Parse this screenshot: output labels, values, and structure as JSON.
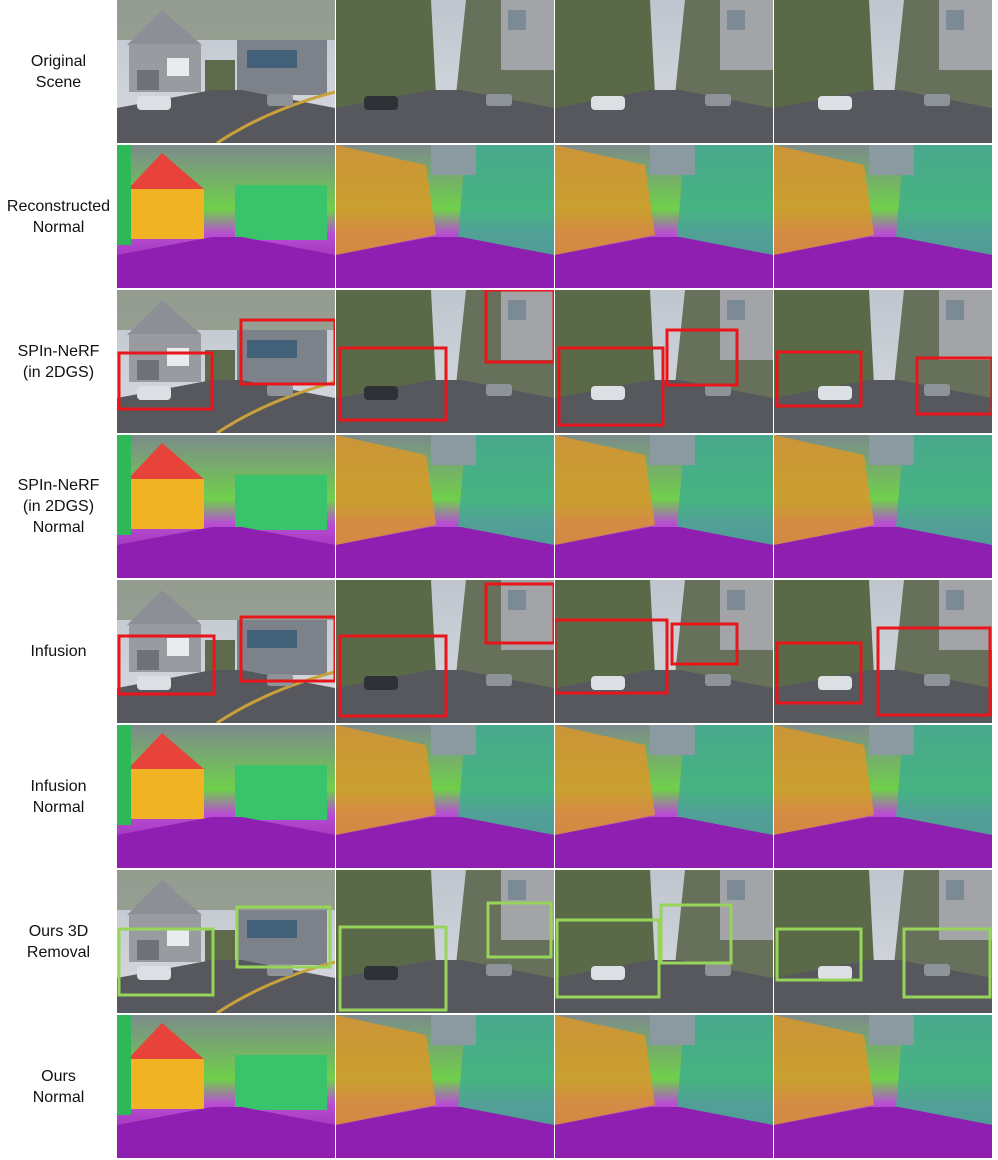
{
  "figure": {
    "rows": [
      {
        "label": "Original\nScene",
        "kind": "scene",
        "boxes": "none"
      },
      {
        "label": "Reconstructed\nNormal",
        "kind": "normal",
        "boxes": "none"
      },
      {
        "label": "SPIn-NeRF\n(in 2DGS)",
        "kind": "scene",
        "boxes": "red"
      },
      {
        "label": "SPIn-NeRF\n(in 2DGS)\nNormal",
        "kind": "normal",
        "boxes": "none"
      },
      {
        "label": "Infusion",
        "kind": "scene",
        "boxes": "red"
      },
      {
        "label": "Infusion\nNormal",
        "kind": "normal",
        "boxes": "none"
      },
      {
        "label": "Ours 3D\nRemoval",
        "kind": "scene",
        "boxes": "green"
      },
      {
        "label": "Ours\nNormal",
        "kind": "normal",
        "boxes": "none"
      }
    ],
    "columns": 4,
    "colors": {
      "red_box": "#e8151b",
      "green_box": "#98d45a",
      "sky": "#c9ccd2",
      "road": "#56585d"
    }
  }
}
